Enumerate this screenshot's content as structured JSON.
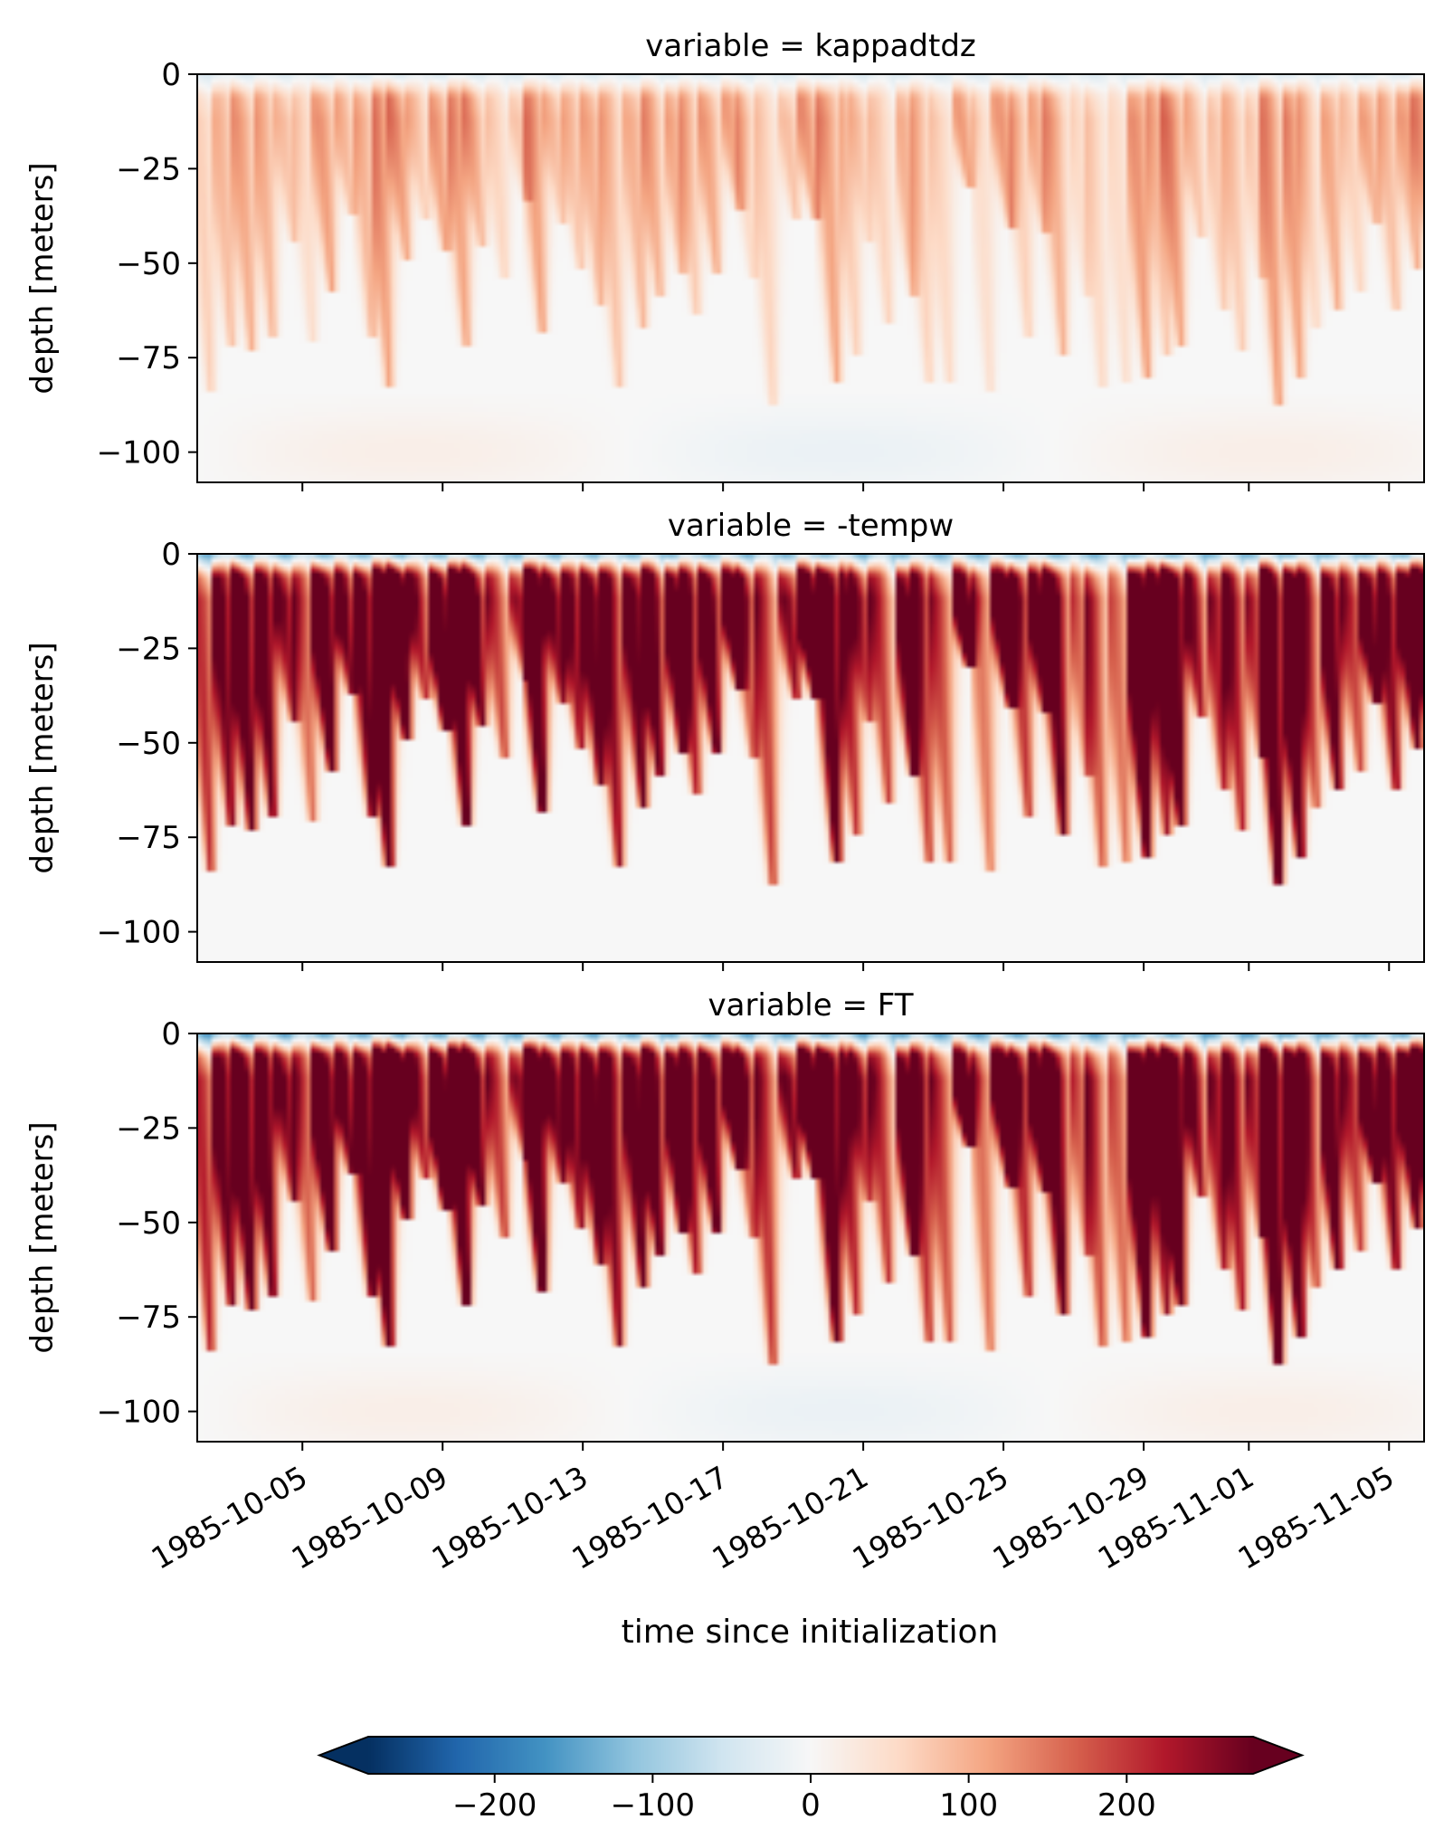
{
  "chart_data": [
    {
      "type": "heatmap",
      "title": "variable = kappadtdz",
      "ylabel": "depth [meters]",
      "ylim": [
        -108,
        0
      ],
      "yticks": [
        0,
        -25,
        -50,
        -75,
        -100
      ],
      "ytick_labels": [
        "0",
        "−25",
        "−50",
        "−75",
        "−100"
      ],
      "strength": 0.32,
      "surface_value": -45,
      "show_xticklabels": false
    },
    {
      "type": "heatmap",
      "title": "variable = -tempw",
      "ylabel": "depth [meters]",
      "ylim": [
        -108,
        0
      ],
      "yticks": [
        0,
        -25,
        -50,
        -75,
        -100
      ],
      "ytick_labels": [
        "0",
        "−25",
        "−50",
        "−75",
        "−100"
      ],
      "strength": 1.0,
      "surface_value": -160,
      "show_xticklabels": false
    },
    {
      "type": "heatmap",
      "title": "variable = FT",
      "ylabel": "depth [meters]",
      "ylim": [
        -108,
        0
      ],
      "yticks": [
        0,
        -25,
        -50,
        -75,
        -100
      ],
      "ytick_labels": [
        "0",
        "−25",
        "−50",
        "−75",
        "−100"
      ],
      "strength": 1.05,
      "surface_value": -180,
      "show_xticklabels": true
    }
  ],
  "xaxis": {
    "xlabel": "time since initialization",
    "start": "1985-10-02",
    "end": "1985-11-06",
    "ticks": [
      "1985-10-05",
      "1985-10-09",
      "1985-10-13",
      "1985-10-17",
      "1985-10-21",
      "1985-10-25",
      "1985-10-29",
      "1985-11-01",
      "1985-11-05"
    ]
  },
  "colorbar": {
    "cmap": "RdBu_r",
    "range": [
      -280,
      280
    ],
    "ticks": [
      -200,
      -100,
      0,
      100,
      200
    ],
    "tick_labels": [
      "−200",
      "−100",
      "0",
      "100",
      "200"
    ],
    "extend": "both"
  }
}
